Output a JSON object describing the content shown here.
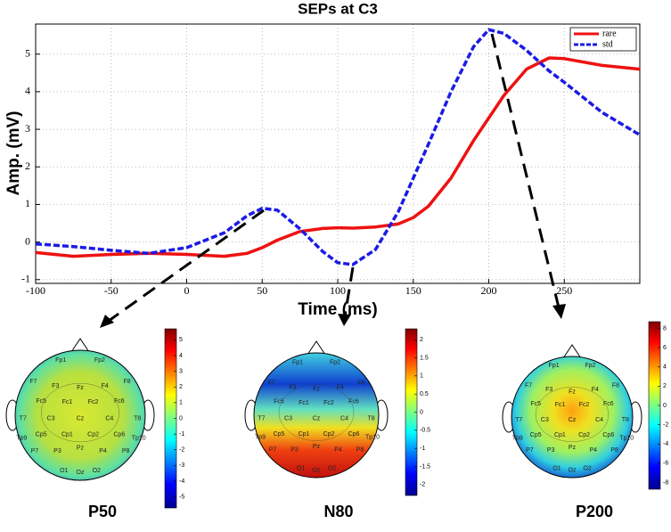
{
  "chart_data": {
    "type": "line",
    "title": "SEPs at C3",
    "x_label": "Time (ms)",
    "y_label": "Amp. (mV)",
    "x": [
      -100,
      -75,
      -50,
      -25,
      0,
      25,
      40,
      50,
      60,
      75,
      90,
      100,
      110,
      125,
      140,
      150,
      160,
      175,
      190,
      200,
      210,
      225,
      240,
      250,
      275,
      300
    ],
    "series": [
      {
        "name": "rare",
        "color": "#ee1111",
        "dashed": false,
        "values": [
          -0.28,
          -0.38,
          -0.33,
          -0.3,
          -0.33,
          -0.38,
          -0.3,
          -0.15,
          0.05,
          0.28,
          0.36,
          0.38,
          0.37,
          0.4,
          0.48,
          0.65,
          0.95,
          1.7,
          2.7,
          3.3,
          3.9,
          4.6,
          4.9,
          4.88,
          4.7,
          4.6
        ]
      },
      {
        "name": "std",
        "color": "#1a1ae6",
        "dashed": true,
        "values": [
          -0.05,
          -0.12,
          -0.22,
          -0.3,
          -0.15,
          0.25,
          0.7,
          0.9,
          0.85,
          0.35,
          -0.25,
          -0.55,
          -0.6,
          -0.2,
          0.8,
          1.7,
          2.6,
          4.0,
          5.2,
          5.65,
          5.55,
          5.1,
          4.55,
          4.25,
          3.45,
          2.85
        ]
      }
    ],
    "xlim": [
      -100,
      300
    ],
    "xticks": [
      -100,
      -50,
      0,
      50,
      100,
      150,
      200,
      250
    ],
    "ylim": [
      -1.1,
      5.8
    ],
    "yticks": [
      -1,
      0,
      1,
      2,
      3,
      4,
      5
    ],
    "grid": true,
    "legend": "upper right",
    "electrodes": [
      "Fp1",
      "Fp2",
      "F7",
      "F3",
      "Fz",
      "F4",
      "F8",
      "Fc5",
      "Fc1",
      "Fc2",
      "Fc6",
      "T7",
      "C3",
      "Cz",
      "C4",
      "T8",
      "Cp5",
      "Cp1",
      "Cp2",
      "Cp6",
      "Tp9",
      "Tp10",
      "P7",
      "P3",
      "Pz",
      "P4",
      "P8",
      "O1",
      "Oz",
      "O2"
    ],
    "topomaps": [
      {
        "label": "P50",
        "colorbar_lim": [
          -5.7,
          5.7
        ],
        "colorbar_ticks": [
          5,
          4,
          3,
          2,
          1,
          0,
          -1,
          -2,
          -3,
          -4,
          -5
        ]
      },
      {
        "label": "N80",
        "colorbar_lim": [
          -2.3,
          2.3
        ],
        "colorbar_ticks": [
          2,
          1.5,
          1,
          0.5,
          0,
          -0.5,
          -1,
          -1.5,
          -2
        ]
      },
      {
        "label": "P200",
        "colorbar_lim": [
          -8.7,
          8.7
        ],
        "colorbar_ticks": [
          8,
          6,
          4,
          2,
          0,
          -2,
          -4,
          -6,
          -8
        ]
      }
    ]
  }
}
